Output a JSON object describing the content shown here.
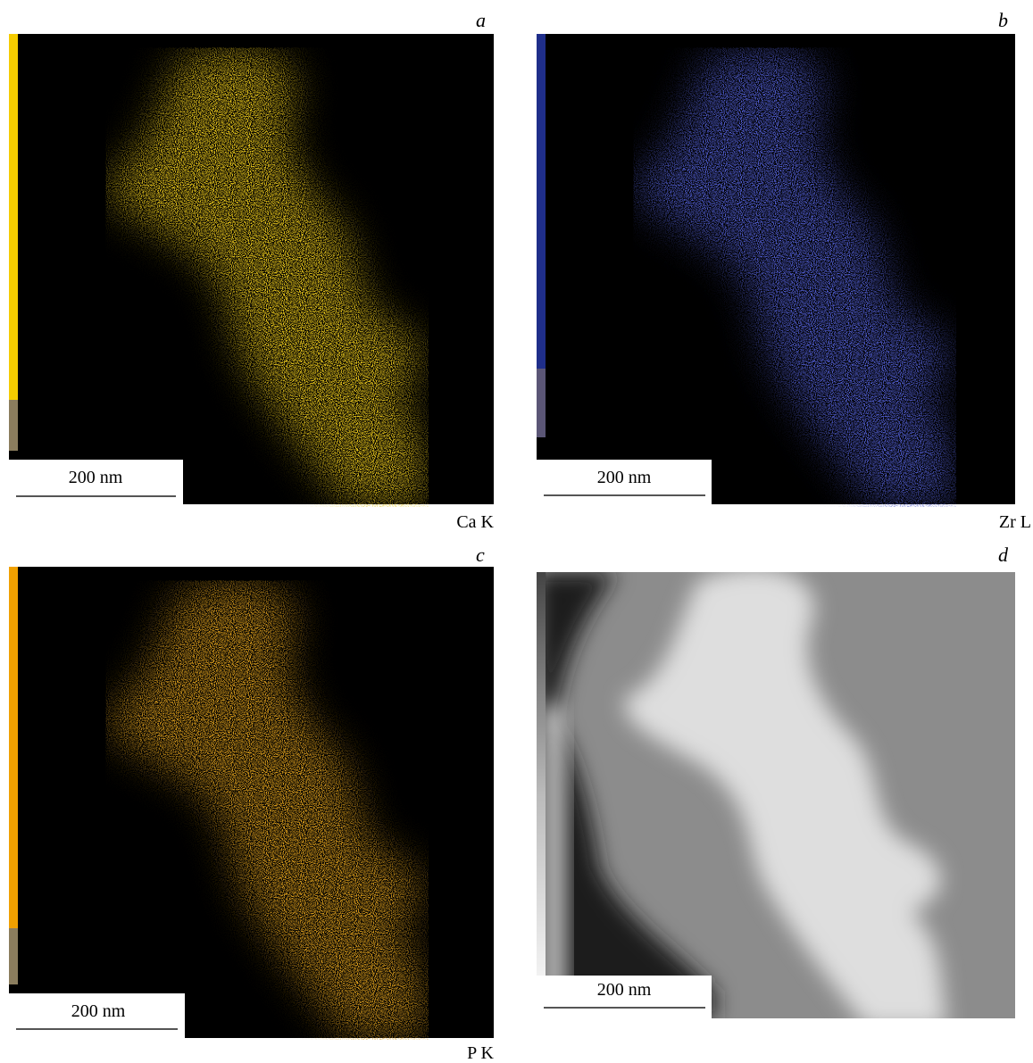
{
  "panels": [
    {
      "label": "a",
      "scale_bar": "200 nm",
      "element": "Ca K"
    },
    {
      "label": "b",
      "scale_bar": "200 nm",
      "element": "Zr L"
    },
    {
      "label": "c",
      "scale_bar": "200 nm",
      "element": "P K"
    },
    {
      "label": "d",
      "scale_bar": "200 nm"
    }
  ]
}
